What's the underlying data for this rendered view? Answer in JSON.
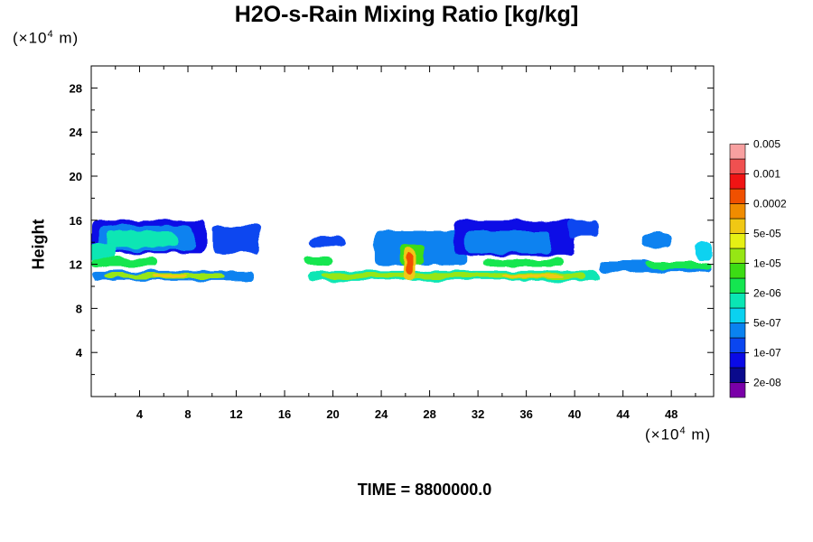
{
  "chart_data": {
    "type": "heatmap",
    "title": "H2O-s-Rain Mixing Ratio [kg/kg]",
    "ylabel": "Height",
    "xlabel": "",
    "x_unit_base": "(×10",
    "x_unit_exp": "4",
    "x_unit_tail": " m)",
    "y_unit_base": "(×10",
    "y_unit_exp": "4",
    "y_unit_tail": " m)",
    "xlim": [
      0,
      51.5
    ],
    "ylim": [
      0,
      30
    ],
    "xticks": [
      4,
      8,
      12,
      16,
      20,
      24,
      28,
      32,
      36,
      40,
      44,
      48
    ],
    "yticks": [
      4,
      8,
      12,
      16,
      20,
      24,
      28
    ],
    "colorbar": {
      "colors": [
        "#7a00a8",
        "#0a0a8c",
        "#0a0ae6",
        "#0a46f0",
        "#0a82f0",
        "#0ad2f0",
        "#0ae6b4",
        "#14e650",
        "#3cdc14",
        "#96e614",
        "#e6f014",
        "#f0c814",
        "#f08c00",
        "#f05000",
        "#f01414",
        "#f05050",
        "#f8a0a0"
      ],
      "labels": [
        "2e-08",
        "1e-07",
        "5e-07",
        "2e-06",
        "1e-05",
        "5e-05",
        "0.0002",
        "0.001",
        "0.005"
      ]
    },
    "layers": [
      {
        "x": [
          0,
          9.5
        ],
        "y": [
          13.0,
          16.0
        ],
        "level": 2
      },
      {
        "x": [
          0.5,
          8.5
        ],
        "y": [
          13.2,
          15.5
        ],
        "level": 4
      },
      {
        "x": [
          1.2,
          7.0
        ],
        "y": [
          13.5,
          15.0
        ],
        "level": 6
      },
      {
        "x": [
          0,
          2
        ],
        "y": [
          12.3,
          14.0
        ],
        "level": 6
      },
      {
        "x": [
          0,
          5.5
        ],
        "y": [
          11.8,
          12.6
        ],
        "level": 7
      },
      {
        "x": [
          0,
          13.5
        ],
        "y": [
          10.5,
          11.4
        ],
        "level": 4
      },
      {
        "x": [
          1,
          11
        ],
        "y": [
          10.7,
          11.2
        ],
        "level": 9
      },
      {
        "x": [
          5,
          8
        ],
        "y": [
          10.8,
          11.1
        ],
        "level": 11
      },
      {
        "x": [
          10,
          14
        ],
        "y": [
          13.0,
          15.5
        ],
        "level": 3
      },
      {
        "x": [
          17.5,
          20
        ],
        "y": [
          12.0,
          12.8
        ],
        "level": 7
      },
      {
        "x": [
          18,
          21
        ],
        "y": [
          13.5,
          14.5
        ],
        "level": 3
      },
      {
        "x": [
          18,
          42
        ],
        "y": [
          10.5,
          11.4
        ],
        "level": 6
      },
      {
        "x": [
          19,
          41
        ],
        "y": [
          10.7,
          11.2
        ],
        "level": 9
      },
      {
        "x": [
          34,
          39
        ],
        "y": [
          10.8,
          11.1
        ],
        "level": 11
      },
      {
        "x": [
          23.5,
          31
        ],
        "y": [
          12.0,
          15.0
        ],
        "level": 4
      },
      {
        "x": [
          25.5,
          27.5
        ],
        "y": [
          12.0,
          13.8
        ],
        "level": 8
      },
      {
        "x": [
          25.8,
          26.8
        ],
        "y": [
          10.5,
          13.5
        ],
        "level": 11
      },
      {
        "x": [
          26.0,
          26.6
        ],
        "y": [
          11.0,
          13.0
        ],
        "level": 13
      },
      {
        "x": [
          30,
          40
        ],
        "y": [
          12.8,
          16.0
        ],
        "level": 2
      },
      {
        "x": [
          31,
          38
        ],
        "y": [
          13.0,
          15.0
        ],
        "level": 4
      },
      {
        "x": [
          39.5,
          42
        ],
        "y": [
          14.5,
          16.0
        ],
        "level": 3
      },
      {
        "x": [
          32.5,
          39
        ],
        "y": [
          11.8,
          12.5
        ],
        "level": 7
      },
      {
        "x": [
          42,
          51.5
        ],
        "y": [
          11.3,
          12.3
        ],
        "level": 4
      },
      {
        "x": [
          46,
          51.5
        ],
        "y": [
          11.6,
          12.3
        ],
        "level": 7
      },
      {
        "x": [
          45.5,
          48
        ],
        "y": [
          13.5,
          14.8
        ],
        "level": 4
      },
      {
        "x": [
          50,
          51.5
        ],
        "y": [
          12.5,
          14.0
        ],
        "level": 5
      }
    ]
  },
  "footer": {
    "time_label": "TIME = 8800000.0"
  }
}
